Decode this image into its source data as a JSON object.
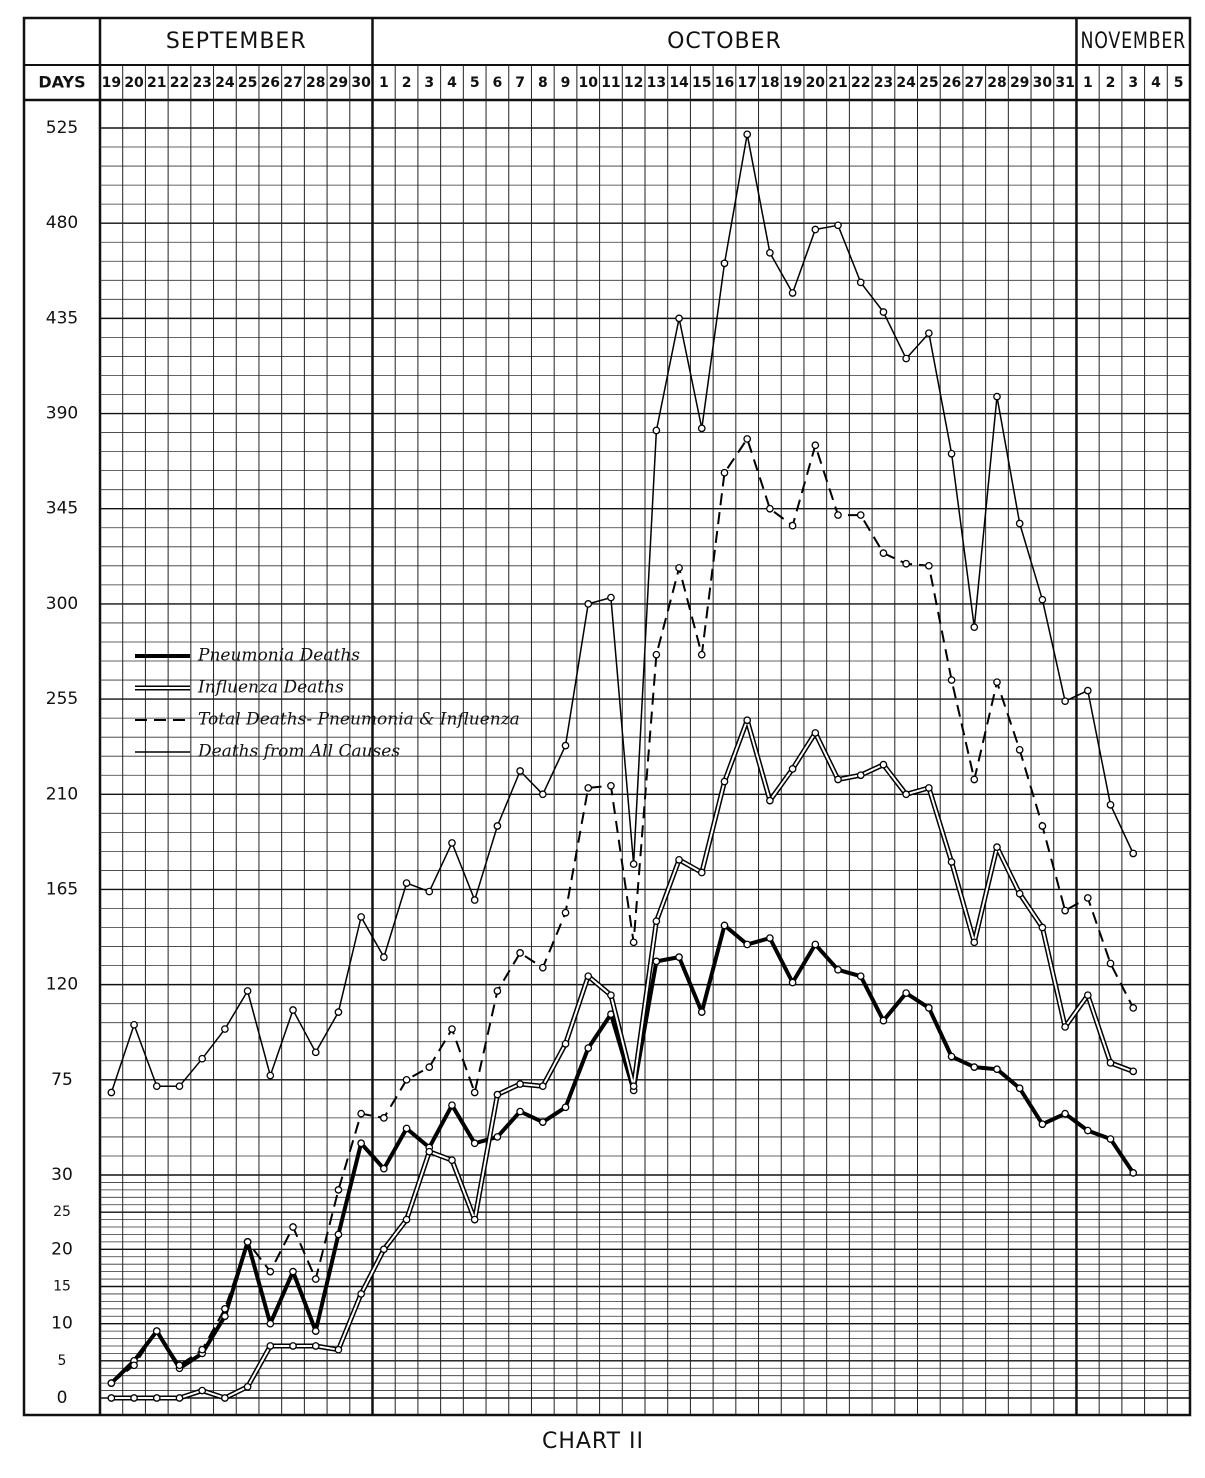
{
  "chart_data": {
    "type": "line",
    "title": "CHART II",
    "x_label": "DAYS",
    "month_groups": [
      {
        "label": "SEPTEMBER",
        "span": 12
      },
      {
        "label": "OCTOBER",
        "span": 31
      },
      {
        "label": "NOVEMBER",
        "span": 5
      }
    ],
    "categories": [
      "19",
      "20",
      "21",
      "22",
      "23",
      "24",
      "25",
      "26",
      "27",
      "28",
      "29",
      "30",
      "1",
      "2",
      "3",
      "4",
      "5",
      "6",
      "7",
      "8",
      "9",
      "10",
      "11",
      "12",
      "13",
      "14",
      "15",
      "16",
      "17",
      "18",
      "19",
      "20",
      "21",
      "22",
      "23",
      "24",
      "25",
      "26",
      "27",
      "28",
      "29",
      "30",
      "31",
      "1",
      "2",
      "3",
      "4",
      "5"
    ],
    "ylim": [
      0,
      525
    ],
    "yticks": [
      0,
      5,
      10,
      15,
      20,
      25,
      30,
      75,
      120,
      165,
      210,
      255,
      300,
      345,
      390,
      435,
      480,
      525
    ],
    "grid": true,
    "series": [
      {
        "name": "Pneumonia Deaths",
        "color": "#000000",
        "style": "thick",
        "values": [
          2,
          5,
          9,
          4,
          6,
          11,
          21,
          10,
          17,
          9,
          22,
          45,
          33,
          52,
          43,
          63,
          45,
          48,
          60,
          55,
          62,
          90,
          106,
          70,
          131,
          133,
          107,
          148,
          139,
          142,
          121,
          139,
          127,
          124,
          103,
          116,
          109,
          86,
          81,
          80,
          71,
          54,
          59,
          51,
          47,
          31,
          null,
          null
        ]
      },
      {
        "name": "Influenza Deaths",
        "color": "#000000",
        "style": "double",
        "values": [
          0,
          0,
          0,
          0,
          1,
          0,
          1.5,
          7,
          7,
          7,
          6.5,
          14,
          20,
          24,
          41,
          37,
          24,
          68,
          73,
          72,
          92,
          124,
          115,
          72,
          150,
          179,
          173,
          216,
          245,
          207,
          222,
          239,
          217,
          219,
          224,
          210,
          213,
          178,
          140,
          185,
          163,
          147,
          100,
          115,
          83,
          79,
          null,
          null
        ]
      },
      {
        "name": "Total Deaths- Pneumonia & Influenza",
        "color": "#000000",
        "style": "dashed",
        "values": [
          2,
          4.4,
          9,
          4.4,
          6.5,
          12,
          21,
          17,
          23,
          16,
          28,
          59,
          57,
          75,
          81,
          99,
          69,
          117,
          135,
          128,
          154,
          213,
          214,
          140,
          276,
          317,
          276,
          362,
          378,
          345,
          337,
          375,
          342,
          342,
          324,
          319,
          318,
          264,
          217,
          263,
          231,
          195,
          155,
          161,
          130,
          109,
          null,
          null
        ]
      },
      {
        "name": "Deaths from All Causes",
        "color": "#000000",
        "style": "wavy",
        "values": [
          69,
          101,
          72,
          72,
          85,
          99,
          117,
          77,
          108,
          88,
          107,
          152,
          133,
          168,
          164,
          187,
          160,
          195,
          221,
          210,
          233,
          300,
          303,
          177,
          382,
          435,
          383,
          461,
          522,
          466,
          447,
          477,
          479,
          452,
          438,
          416,
          428,
          371,
          289,
          398,
          338,
          302,
          254,
          259,
          205,
          182,
          null,
          null
        ]
      }
    ]
  }
}
